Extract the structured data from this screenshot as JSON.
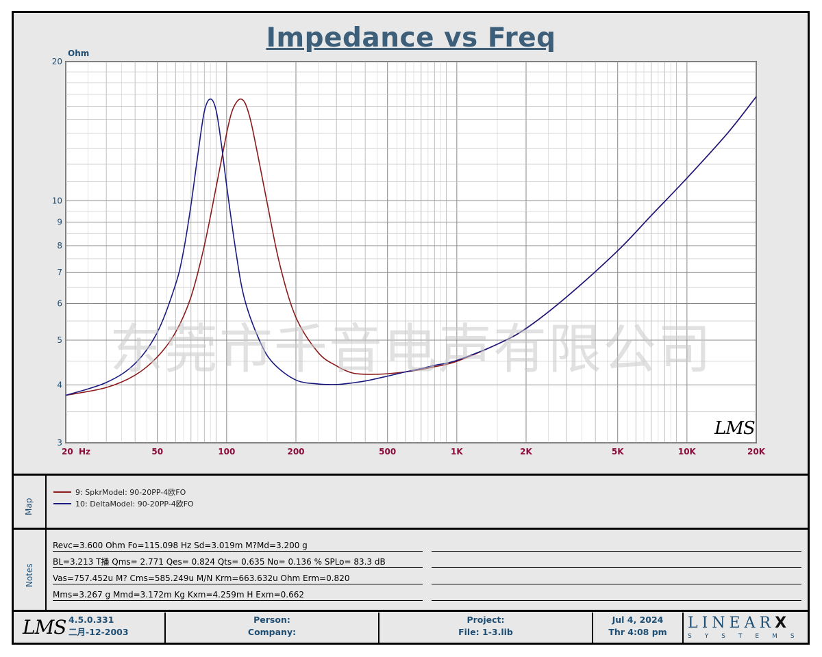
{
  "title": "Impedance vs Freq",
  "watermark": "东莞市千音电声有限公司",
  "plot_logo": "LMS",
  "map": {
    "label": "Map",
    "items": [
      {
        "label": "9: SpkrModel: 90-20PP-4欧FO",
        "color": "#8b1a1a"
      },
      {
        "label": "10: DeltaModel: 90-20PP-4欧FO",
        "color": "#1a1a80"
      }
    ]
  },
  "notes": {
    "label": "Notes",
    "lines": [
      "Revc=3.600 Ohm  Fo=115.098 Hz  Sd=3.019m M?Md=3.200 g",
      "BL=3.213 T播  Qms= 2.771  Qes= 0.824  Qts= 0.635  No= 0.136 %  SPLo= 83.3 dB",
      "Vas=757.452u M? Cms=585.249u M/N  Krm=663.632u Ohm  Erm=0.820",
      "Mms=3.267 g  Mmd=3.172m Kg  Kxm=4.259m H  Exm=0.662"
    ]
  },
  "footer": {
    "logo": "LMS",
    "version": "4.5.0.331",
    "build_date": "二月-12-2003",
    "person_label": "Person:",
    "company_label": "Company:",
    "project_label": "Project:",
    "file_label": "File: 1-3.lib",
    "date": "Jul  4, 2024",
    "time": "Thr  4:08 pm",
    "brand_word": "LINEAR",
    "brand_x": "X",
    "brand_sub": "SYSTEMS"
  },
  "colors": {
    "title": "#3d5f7a",
    "axis_y_label": "#1e4e74",
    "axis_x_label": "#8b0a3a",
    "series1": "#8b1a1a",
    "series2": "#1a1a80"
  },
  "chart_data": {
    "type": "line",
    "title": "Impedance vs Freq",
    "xlabel": "Hz",
    "ylabel": "Ohm",
    "xscale": "log",
    "yscale": "log",
    "xlim": [
      20,
      20000
    ],
    "ylim": [
      3,
      20
    ],
    "grid": true,
    "x_ticks": [
      {
        "value": 20,
        "label": "20"
      },
      {
        "value": 50,
        "label": "50"
      },
      {
        "value": 100,
        "label": "100"
      },
      {
        "value": 200,
        "label": "200"
      },
      {
        "value": 500,
        "label": "500"
      },
      {
        "value": 1000,
        "label": "1K"
      },
      {
        "value": 2000,
        "label": "2K"
      },
      {
        "value": 5000,
        "label": "5K"
      },
      {
        "value": 10000,
        "label": "10K"
      },
      {
        "value": 20000,
        "label": "20K"
      }
    ],
    "y_ticks": [
      3,
      4,
      5,
      6,
      7,
      8,
      9,
      10,
      20
    ],
    "series": [
      {
        "name": "9: SpkrModel: 90-20PP-4欧FO",
        "color": "#8b1a1a",
        "x": [
          20,
          30,
          40,
          50,
          60,
          70,
          80,
          90,
          100,
          105,
          110,
          115,
          120,
          125,
          130,
          140,
          150,
          170,
          200,
          250,
          300,
          350,
          400,
          450,
          500,
          600,
          700,
          800,
          1000,
          1500,
          2000,
          3000,
          5000,
          7000,
          10000,
          15000,
          20000
        ],
        "y": [
          3.8,
          3.95,
          4.2,
          4.6,
          5.2,
          6.2,
          8.0,
          10.7,
          14.0,
          15.5,
          16.3,
          16.6,
          16.3,
          15.4,
          14.2,
          11.8,
          9.9,
          7.3,
          5.6,
          4.7,
          4.4,
          4.25,
          4.22,
          4.22,
          4.23,
          4.27,
          4.32,
          4.38,
          4.5,
          4.9,
          5.3,
          6.2,
          7.8,
          9.3,
          11.2,
          14.0,
          16.8
        ]
      },
      {
        "name": "10: DeltaModel: 90-20PP-4欧FO",
        "color": "#1a1a80",
        "x": [
          20,
          30,
          40,
          50,
          60,
          65,
          70,
          75,
          80,
          85,
          90,
          95,
          100,
          110,
          120,
          140,
          160,
          200,
          250,
          300,
          350,
          400,
          500,
          600,
          700,
          800,
          1000,
          1500,
          2000,
          3000,
          5000,
          7000,
          10000,
          15000,
          20000
        ],
        "y": [
          3.8,
          4.05,
          4.45,
          5.2,
          6.6,
          7.8,
          9.8,
          12.6,
          15.6,
          16.6,
          15.7,
          13.2,
          10.8,
          7.7,
          6.1,
          4.95,
          4.45,
          4.1,
          4.02,
          4.01,
          4.04,
          4.08,
          4.18,
          4.27,
          4.34,
          4.41,
          4.52,
          4.9,
          5.3,
          6.2,
          7.8,
          9.3,
          11.2,
          14.0,
          16.8
        ]
      }
    ]
  }
}
